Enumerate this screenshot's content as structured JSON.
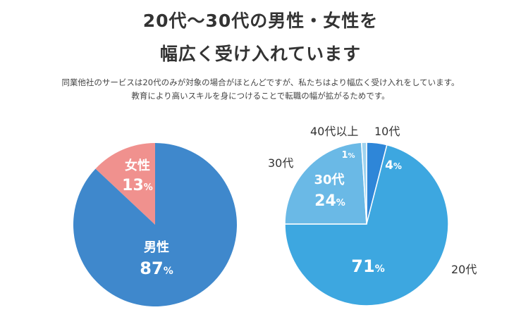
{
  "header": {
    "title_line1": "20代〜30代の男性・女性を",
    "title_line2": "幅広く受け入れています",
    "lead_line1": "同業他社のサービスは20代のみが対象の場合がほとんどですが、私たちはより幅広く受け入れをしています。",
    "lead_line2": "教育により高いスキルを身につけることで転職の幅が拡がるためです。"
  },
  "chart_data": [
    {
      "type": "pie",
      "slices": [
        {
          "label": "女性",
          "value": 13,
          "color": "#f0918e"
        },
        {
          "label": "男性",
          "value": 87,
          "color": "#3f88cc"
        }
      ],
      "unit": "%"
    },
    {
      "type": "pie",
      "slices": [
        {
          "label": "10代",
          "value": 4,
          "color": "#2e86d8"
        },
        {
          "label": "20代",
          "value": 71,
          "color": "#3da7e0"
        },
        {
          "label": "30代",
          "value": 24,
          "color": "#6ab9e6"
        },
        {
          "label": "40代以上",
          "value": 1,
          "color": "#9fd3ef"
        }
      ],
      "unit": "%"
    }
  ]
}
